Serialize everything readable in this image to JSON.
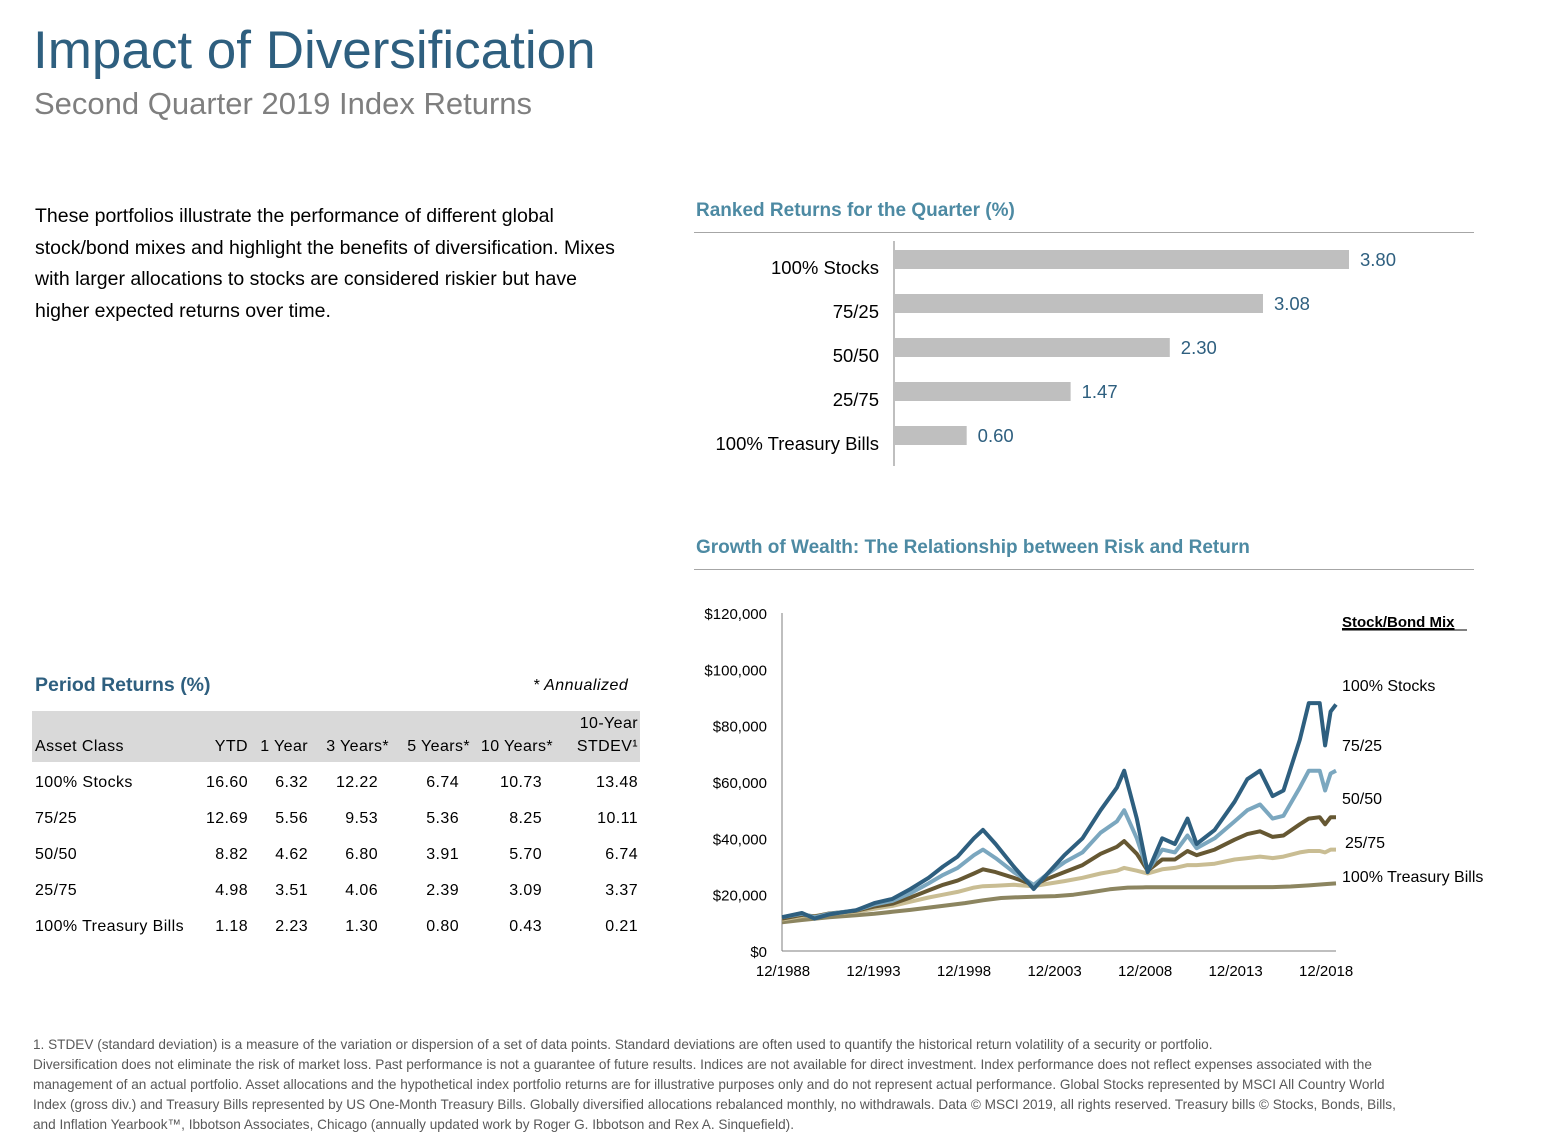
{
  "header": {
    "title": "Impact of Diversification",
    "subtitle": "Second Quarter 2019 Index Returns"
  },
  "intro": {
    "text": "These portfolios illustrate the performance of different global stock/bond mixes and highlight the benefits of diversification. Mixes with larger allocations to stocks are considered riskier but have higher expected returns over time."
  },
  "ranked": {
    "title": "Ranked Returns for the Quarter (%)"
  },
  "growth": {
    "title": "Growth of Wealth: The Relationship between Risk and Return"
  },
  "period": {
    "title": "Period Returns (%)",
    "note": "* Annualized",
    "header": {
      "asset_class": "Asset Class",
      "ytd": "YTD",
      "one_year": "1 Year",
      "three_years": "3 Years*",
      "five_years": "5 Years*",
      "ten_years": "10 Years*",
      "stdev_line1": "10-Year",
      "stdev_line2": "STDEV¹"
    },
    "rows": [
      {
        "name": "100% Stocks",
        "ytd": "16.60",
        "y1": "6.32",
        "y3": "12.22",
        "y5": "6.74",
        "y10": "10.73",
        "stdev": "13.48"
      },
      {
        "name": "75/25",
        "ytd": "12.69",
        "y1": "5.56",
        "y3": "9.53",
        "y5": "5.36",
        "y10": "8.25",
        "stdev": "10.11"
      },
      {
        "name": "50/50",
        "ytd": "8.82",
        "y1": "4.62",
        "y3": "6.80",
        "y5": "3.91",
        "y10": "5.70",
        "stdev": "6.74"
      },
      {
        "name": "25/75",
        "ytd": "4.98",
        "y1": "3.51",
        "y3": "4.06",
        "y5": "2.39",
        "y10": "3.09",
        "stdev": "3.37"
      },
      {
        "name": "100% Treasury Bills",
        "ytd": "1.18",
        "y1": "2.23",
        "y3": "1.30",
        "y5": "0.80",
        "y10": "0.43",
        "stdev": "0.21"
      }
    ]
  },
  "footnotes": {
    "note1": "1. STDEV (standard deviation) is a measure of the variation or dispersion of a set of data points. Standard deviations are often used to quantify the historical return volatility of a security or portfolio.",
    "disclaimer": "Diversification does not eliminate the risk of market loss. Past performance is not a guarantee of future results. Indices are not available for direct investment. Index performance does not reflect expenses associated with the management of an actual portfolio. Asset allocations and the hypothetical index portfolio returns are for illustrative purposes only and do not represent actual performance. Global Stocks represented by MSCI All Country World Index (gross div.) and Treasury Bills represented by US One-Month Treasury Bills. Globally diversified allocations rebalanced monthly, no withdrawals. Data © MSCI 2019, all rights reserved. Treasury bills © Stocks, Bonds, Bills, and Inflation Yearbook™, Ibbotson Associates, Chicago (annually updated work by Roger G. Ibbotson and Rex A. Sinquefield)."
  },
  "chart_data": [
    {
      "type": "bar",
      "orientation": "horizontal",
      "title": "Ranked Returns for the Quarter (%)",
      "categories": [
        "100% Stocks",
        "75/25",
        "50/50",
        "25/75",
        "100% Treasury Bills"
      ],
      "values": [
        3.8,
        3.08,
        2.3,
        1.47,
        0.6
      ],
      "labels": [
        "3.80",
        "3.08",
        "2.30",
        "1.47",
        "0.60"
      ],
      "xlim": [
        0,
        4.0
      ],
      "grid": false,
      "colors": {
        "bar": "#bfbfbf",
        "label": "#2e5f7f"
      }
    },
    {
      "type": "line",
      "title": "Growth of Wealth: The Relationship between Risk and Return",
      "legend_title": "Stock/Bond Mix",
      "x_ticks": [
        "12/1988",
        "12/1993",
        "12/1998",
        "12/2003",
        "12/2008",
        "12/2013",
        "12/2018"
      ],
      "y_ticks": [
        "$0",
        "$20,000",
        "$40,000",
        "$60,000",
        "$80,000",
        "$100,000",
        "$120,000"
      ],
      "xlim": [
        1988.9,
        2019.5
      ],
      "ylim": [
        0,
        120000
      ],
      "grid": false,
      "series": [
        {
          "name": "100% Stocks",
          "color": "#2e5f7f",
          "points": [
            [
              1988.9,
              12000
            ],
            [
              1990.0,
              13500
            ],
            [
              1990.7,
              11500
            ],
            [
              1991.5,
              13000
            ],
            [
              1993.0,
              14500
            ],
            [
              1994.0,
              17000
            ],
            [
              1995.0,
              18500
            ],
            [
              1996.0,
              22000
            ],
            [
              1997.0,
              26000
            ],
            [
              1997.8,
              30000
            ],
            [
              1998.6,
              33500
            ],
            [
              1999.5,
              40000
            ],
            [
              2000.0,
              43000
            ],
            [
              2000.7,
              38000
            ],
            [
              2001.7,
              30000
            ],
            [
              2002.8,
              22000
            ],
            [
              2003.5,
              27000
            ],
            [
              2004.5,
              34000
            ],
            [
              2005.5,
              40000
            ],
            [
              2006.5,
              50000
            ],
            [
              2007.4,
              58000
            ],
            [
              2007.8,
              64000
            ],
            [
              2008.5,
              47000
            ],
            [
              2009.1,
              28000
            ],
            [
              2009.9,
              40000
            ],
            [
              2010.6,
              38000
            ],
            [
              2011.3,
              47000
            ],
            [
              2011.8,
              38000
            ],
            [
              2012.8,
              43000
            ],
            [
              2013.9,
              53000
            ],
            [
              2014.6,
              61000
            ],
            [
              2015.3,
              64000
            ],
            [
              2016.0,
              55000
            ],
            [
              2016.6,
              57000
            ],
            [
              2017.5,
              75000
            ],
            [
              2018.0,
              88000
            ],
            [
              2018.6,
              88000
            ],
            [
              2018.9,
              73000
            ],
            [
              2019.2,
              85000
            ],
            [
              2019.5,
              87500
            ]
          ]
        },
        {
          "name": "75/25",
          "color": "#7ba7bf",
          "points": [
            [
              1988.9,
              12000
            ],
            [
              1990.0,
              13200
            ],
            [
              1990.7,
              12000
            ],
            [
              1991.5,
              13200
            ],
            [
              1993.0,
              14500
            ],
            [
              1994.0,
              16500
            ],
            [
              1995.0,
              17800
            ],
            [
              1996.0,
              20500
            ],
            [
              1997.0,
              24000
            ],
            [
              1997.8,
              27000
            ],
            [
              1998.6,
              29500
            ],
            [
              1999.5,
              34000
            ],
            [
              2000.0,
              36000
            ],
            [
              2000.7,
              33000
            ],
            [
              2001.7,
              28000
            ],
            [
              2002.8,
              23500
            ],
            [
              2003.5,
              27000
            ],
            [
              2004.5,
              31500
            ],
            [
              2005.5,
              35000
            ],
            [
              2006.5,
              42000
            ],
            [
              2007.4,
              46000
            ],
            [
              2007.8,
              50000
            ],
            [
              2008.5,
              40000
            ],
            [
              2009.1,
              28500
            ],
            [
              2009.9,
              36000
            ],
            [
              2010.6,
              35000
            ],
            [
              2011.3,
              41000
            ],
            [
              2011.8,
              36500
            ],
            [
              2012.8,
              40000
            ],
            [
              2013.9,
              46000
            ],
            [
              2014.6,
              50000
            ],
            [
              2015.3,
              52000
            ],
            [
              2016.0,
              47000
            ],
            [
              2016.6,
              48000
            ],
            [
              2017.5,
              58000
            ],
            [
              2018.0,
              64000
            ],
            [
              2018.6,
              64000
            ],
            [
              2018.9,
              57000
            ],
            [
              2019.2,
              63000
            ],
            [
              2019.5,
              64000
            ]
          ]
        },
        {
          "name": "50/50",
          "color": "#665833",
          "points": [
            [
              1988.9,
              11500
            ],
            [
              1990.0,
              12800
            ],
            [
              1990.7,
              12300
            ],
            [
              1991.5,
              13300
            ],
            [
              1993.0,
              14300
            ],
            [
              1994.0,
              15800
            ],
            [
              1995.0,
              16800
            ],
            [
              1996.0,
              19000
            ],
            [
              1997.0,
              21500
            ],
            [
              1997.8,
              23500
            ],
            [
              1998.6,
              25000
            ],
            [
              1999.5,
              27500
            ],
            [
              2000.0,
              29000
            ],
            [
              2000.7,
              28000
            ],
            [
              2001.7,
              26000
            ],
            [
              2002.8,
              23500
            ],
            [
              2003.5,
              25500
            ],
            [
              2004.5,
              28000
            ],
            [
              2005.5,
              30500
            ],
            [
              2006.5,
              34500
            ],
            [
              2007.4,
              37000
            ],
            [
              2007.8,
              39000
            ],
            [
              2008.5,
              34500
            ],
            [
              2009.1,
              28500
            ],
            [
              2009.9,
              32500
            ],
            [
              2010.6,
              32500
            ],
            [
              2011.3,
              35500
            ],
            [
              2011.8,
              34000
            ],
            [
              2012.8,
              36000
            ],
            [
              2013.9,
              39500
            ],
            [
              2014.6,
              41500
            ],
            [
              2015.3,
              42500
            ],
            [
              2016.0,
              40500
            ],
            [
              2016.6,
              41000
            ],
            [
              2017.5,
              45000
            ],
            [
              2018.0,
              47000
            ],
            [
              2018.6,
              47500
            ],
            [
              2018.9,
              45000
            ],
            [
              2019.2,
              47500
            ],
            [
              2019.5,
              47500
            ]
          ]
        },
        {
          "name": "25/75",
          "color": "#c9bd93",
          "points": [
            [
              1988.9,
              11200
            ],
            [
              1990.0,
              12400
            ],
            [
              1990.7,
              12400
            ],
            [
              1991.5,
              13200
            ],
            [
              1993.0,
              14000
            ],
            [
              1994.0,
              15000
            ],
            [
              1995.0,
              16000
            ],
            [
              1996.0,
              17500
            ],
            [
              1997.0,
              19000
            ],
            [
              1997.8,
              20000
            ],
            [
              1998.6,
              21000
            ],
            [
              1999.5,
              22500
            ],
            [
              2000.0,
              23000
            ],
            [
              2000.7,
              23200
            ],
            [
              2001.7,
              23500
            ],
            [
              2002.8,
              23000
            ],
            [
              2003.5,
              23800
            ],
            [
              2004.5,
              24800
            ],
            [
              2005.5,
              26000
            ],
            [
              2006.5,
              27500
            ],
            [
              2007.4,
              28500
            ],
            [
              2007.8,
              29500
            ],
            [
              2008.5,
              28500
            ],
            [
              2009.1,
              27500
            ],
            [
              2009.9,
              29000
            ],
            [
              2010.6,
              29500
            ],
            [
              2011.3,
              30500
            ],
            [
              2011.8,
              30500
            ],
            [
              2012.8,
              31000
            ],
            [
              2013.9,
              32500
            ],
            [
              2014.6,
              33000
            ],
            [
              2015.3,
              33500
            ],
            [
              2016.0,
              33000
            ],
            [
              2016.6,
              33500
            ],
            [
              2017.5,
              35000
            ],
            [
              2018.0,
              35500
            ],
            [
              2018.6,
              35500
            ],
            [
              2018.9,
              35000
            ],
            [
              2019.2,
              36000
            ],
            [
              2019.5,
              36000
            ]
          ]
        },
        {
          "name": "100% Treasury Bills",
          "color": "#8c8560",
          "points": [
            [
              1988.9,
              10200
            ],
            [
              1990.0,
              11000
            ],
            [
              1991.5,
              12000
            ],
            [
              1993.0,
              12700
            ],
            [
              1994.0,
              13200
            ],
            [
              1995.0,
              13900
            ],
            [
              1996.0,
              14600
            ],
            [
              1997.0,
              15400
            ],
            [
              1998.0,
              16200
            ],
            [
              1999.0,
              17000
            ],
            [
              2000.0,
              18000
            ],
            [
              2001.0,
              18800
            ],
            [
              2002.0,
              19100
            ],
            [
              2003.0,
              19300
            ],
            [
              2004.0,
              19500
            ],
            [
              2005.0,
              20000
            ],
            [
              2006.0,
              20900
            ],
            [
              2007.0,
              21900
            ],
            [
              2008.0,
              22500
            ],
            [
              2009.0,
              22600
            ],
            [
              2010.0,
              22600
            ],
            [
              2012.0,
              22600
            ],
            [
              2014.0,
              22600
            ],
            [
              2016.0,
              22700
            ],
            [
              2017.0,
              22900
            ],
            [
              2018.0,
              23300
            ],
            [
              2019.0,
              23800
            ],
            [
              2019.5,
              24000
            ]
          ]
        }
      ]
    }
  ]
}
